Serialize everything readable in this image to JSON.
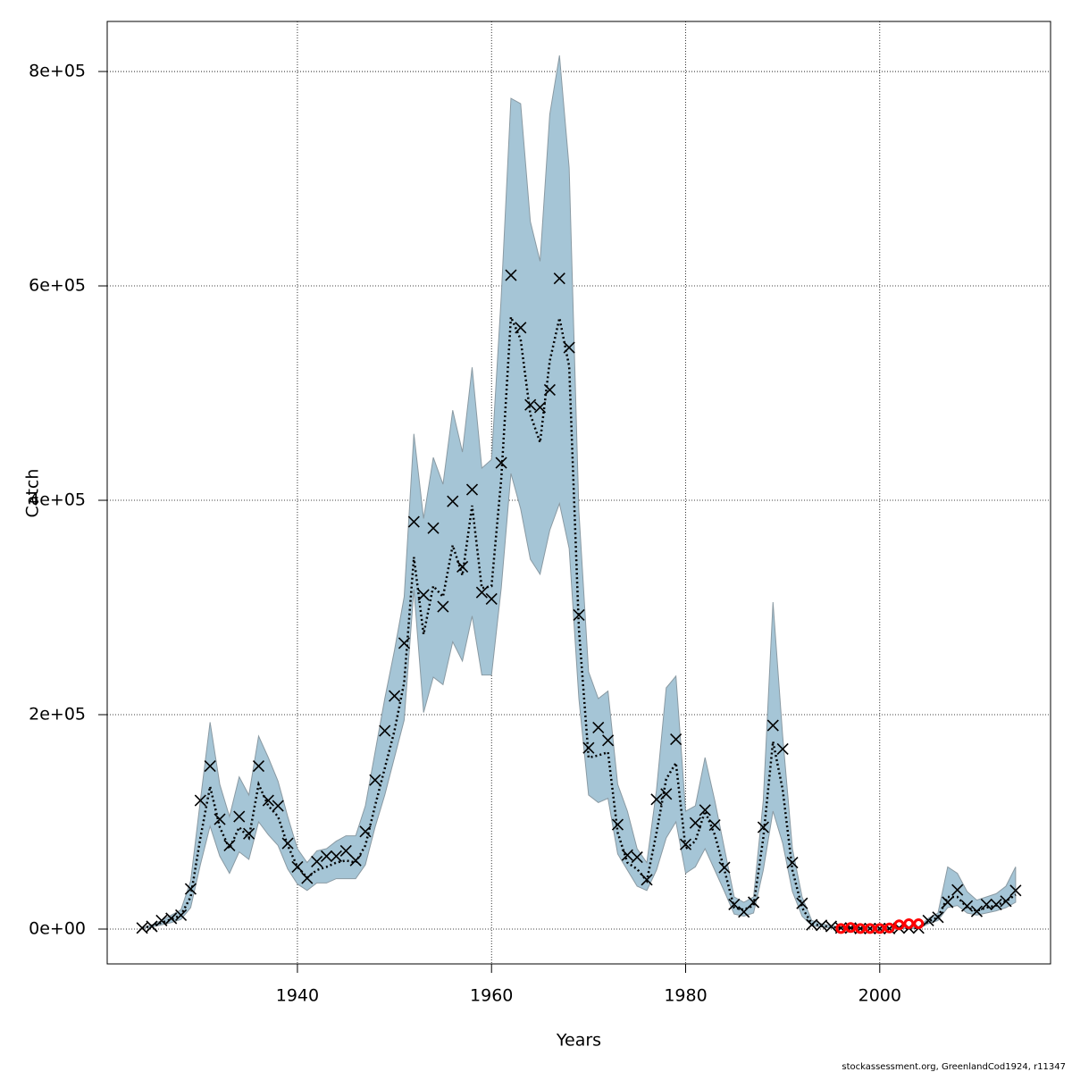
{
  "chart_data": {
    "type": "line",
    "x_label": "Years",
    "y_label": "Catch",
    "footer": "stockassessment.org, GreenlandCod1924, r11347",
    "xlim": [
      1920.4,
      2017.6
    ],
    "xticks": [
      1940,
      1960,
      1980,
      2000
    ],
    "ylim": [
      -32500,
      846700
    ],
    "yticks": [
      {
        "value": 0,
        "label": "0e+00"
      },
      {
        "value": 200000,
        "label": "2e+05"
      },
      {
        "value": 400000,
        "label": "4e+05"
      },
      {
        "value": 600000,
        "label": "6e+05"
      },
      {
        "value": 800000,
        "label": "8e+05"
      }
    ],
    "grid": true,
    "x": [
      1924,
      1925,
      1926,
      1927,
      1928,
      1929,
      1930,
      1931,
      1932,
      1933,
      1934,
      1935,
      1936,
      1937,
      1938,
      1939,
      1940,
      1941,
      1942,
      1943,
      1944,
      1945,
      1946,
      1947,
      1948,
      1949,
      1950,
      1951,
      1952,
      1953,
      1954,
      1955,
      1956,
      1957,
      1958,
      1959,
      1960,
      1961,
      1962,
      1963,
      1964,
      1965,
      1966,
      1967,
      1968,
      1969,
      1970,
      1971,
      1972,
      1973,
      1974,
      1975,
      1976,
      1977,
      1978,
      1979,
      1980,
      1981,
      1982,
      1983,
      1984,
      1985,
      1986,
      1987,
      1988,
      1989,
      1990,
      1991,
      1992,
      1993,
      1994,
      1995,
      1996,
      1997,
      1998,
      1999,
      2000,
      2001,
      2002,
      2003,
      2004,
      2005,
      2006,
      2007,
      2008,
      2009,
      2010,
      2011,
      2012,
      2013,
      2014
    ],
    "band": {
      "color": "#a5c5d6",
      "upper": [
        1000,
        4000,
        8000,
        13000,
        18000,
        45000,
        120000,
        193000,
        135000,
        105000,
        142000,
        125000,
        180000,
        160000,
        138000,
        105000,
        75000,
        62000,
        73000,
        75000,
        82000,
        87000,
        87000,
        115000,
        165000,
        215000,
        260000,
        310000,
        462000,
        383000,
        440000,
        415000,
        484000,
        445000,
        524000,
        430000,
        438000,
        590000,
        775000,
        770000,
        660000,
        623000,
        760000,
        815000,
        710000,
        390000,
        240000,
        215000,
        222000,
        135000,
        110000,
        75000,
        62000,
        130000,
        225000,
        236000,
        110000,
        115000,
        160000,
        120000,
        75000,
        30000,
        25000,
        30000,
        120000,
        305000,
        180000,
        75000,
        30000,
        8000,
        5000,
        3000,
        2000,
        2000,
        1000,
        1000,
        1000,
        1000,
        2000,
        2000,
        2000,
        10000,
        15000,
        58000,
        52000,
        35000,
        27000,
        30000,
        33000,
        40000,
        58000
      ],
      "lower": [
        500,
        2000,
        4000,
        6000,
        9000,
        20000,
        60000,
        96000,
        68000,
        52000,
        72000,
        65000,
        100000,
        88000,
        78000,
        56000,
        42000,
        36000,
        43000,
        43000,
        47000,
        47000,
        47000,
        60000,
        95000,
        125000,
        160000,
        195000,
        317000,
        202000,
        235000,
        228000,
        268000,
        250000,
        292000,
        237000,
        237000,
        318000,
        425000,
        392000,
        345000,
        331000,
        372000,
        397000,
        355000,
        215000,
        125000,
        118000,
        122000,
        70000,
        55000,
        40000,
        36000,
        55000,
        85000,
        100000,
        52000,
        58000,
        75000,
        55000,
        35000,
        14000,
        12000,
        15000,
        55000,
        110000,
        80000,
        35000,
        12000,
        3000,
        2000,
        1000,
        1000,
        500,
        300,
        300,
        300,
        300,
        500,
        500,
        500,
        5000,
        8000,
        20000,
        22000,
        15000,
        13000,
        15000,
        17000,
        20000,
        25000
      ]
    },
    "series": [
      {
        "style": "dotted",
        "color": "#000000",
        "values": [
          1000,
          3000,
          6000,
          9000,
          13000,
          30000,
          85000,
          133000,
          95000,
          75000,
          95000,
          85000,
          135000,
          115000,
          105000,
          78000,
          58000,
          48000,
          55000,
          58000,
          62000,
          64000,
          62000,
          78000,
          115000,
          150000,
          185000,
          230000,
          347000,
          275000,
          320000,
          310000,
          358000,
          330000,
          395000,
          318000,
          320000,
          420000,
          571000,
          550000,
          480000,
          454000,
          530000,
          570000,
          525000,
          280000,
          160000,
          162000,
          165000,
          90000,
          62000,
          56000,
          45000,
          90000,
          140000,
          155000,
          75000,
          82000,
          110000,
          88000,
          55000,
          20000,
          18000,
          22000,
          85000,
          175000,
          130000,
          55000,
          20000,
          5000,
          3000,
          2000,
          1000,
          1000,
          500,
          500,
          500,
          500,
          1000,
          1000,
          1000,
          7000,
          11000,
          30000,
          30000,
          20000,
          17000,
          20000,
          22000,
          26000,
          32000
        ]
      },
      {
        "style": "cross",
        "color": "#000000",
        "values": [
          1000,
          2500,
          8000,
          10000,
          13000,
          37500,
          120000,
          152000,
          102500,
          78000,
          105000,
          89000,
          152000,
          120000,
          115000,
          80000,
          58000,
          47500,
          63000,
          68000,
          68000,
          73000,
          64000,
          91000,
          139000,
          185000,
          217500,
          266700,
          380000,
          311700,
          374000,
          300800,
          399000,
          338000,
          410000,
          314000,
          308000,
          435000,
          610000,
          561000,
          489000,
          486700,
          503000,
          607000,
          542500,
          293000,
          169000,
          188000,
          176000,
          97500,
          69000,
          67000,
          46000,
          121000,
          126000,
          177000,
          79000,
          99000,
          111000,
          97000,
          57500,
          23000,
          16000,
          25000,
          95000,
          190000,
          168000,
          62000,
          24000,
          4000,
          3500,
          2500,
          1000,
          1000,
          500,
          500,
          500,
          500,
          1000,
          1000,
          1000,
          8000,
          11000,
          25000,
          36500,
          21500,
          16500,
          23000,
          23000,
          26000,
          36000
        ]
      },
      {
        "style": "circle",
        "color": "#ff0000",
        "x": [
          1996,
          1997,
          1998,
          1999,
          2000,
          2001,
          2002,
          2003,
          2004
        ],
        "values": [
          500,
          1500,
          500,
          500,
          500,
          1000,
          4000,
          5000,
          5000
        ]
      }
    ]
  }
}
